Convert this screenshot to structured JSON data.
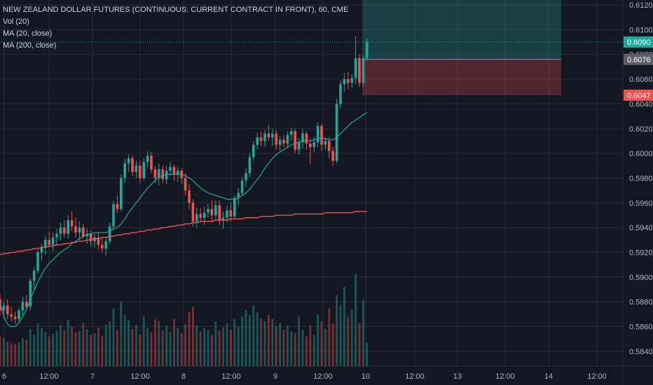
{
  "legend": {
    "title": "NEW ZEALAND DOLLAR FUTURES (CONTINUOUS: CURRENT CONTRACT IN FRONT), 60, CME",
    "vol": "Vol (20)",
    "ma20": "MA (20, close)",
    "ma200": "MA (200, close)"
  },
  "colors": {
    "background": "#131722",
    "up": "#26a69a",
    "down": "#ef5350",
    "ma20": "#26a69a",
    "ma200": "#ef5350",
    "grid": "#2a2e39"
  },
  "chart_data": {
    "type": "candlestick",
    "symbol": "NEW ZEALAND DOLLAR FUTURES (CONTINUOUS: CURRENT CONTRACT IN FRONT)",
    "interval": "60",
    "exchange": "CME",
    "ylim": [
      0.5828,
      0.6124
    ],
    "y_ticks": [
      "0.6120",
      "0.6100",
      "0.6080",
      "0.6060",
      "0.6040",
      "0.6020",
      "0.6000",
      "0.5980",
      "0.5960",
      "0.5940",
      "0.5920",
      "0.5900",
      "0.5880",
      "0.5860",
      "0.5840"
    ],
    "x_ticks": [
      "6",
      "12:00",
      "7",
      "12:00",
      "8",
      "12:00",
      "9",
      "12:00",
      "10",
      "12:00",
      "13",
      "12:00",
      "14",
      "12:00"
    ],
    "price_badges": [
      {
        "label": "0.6090",
        "value": 0.609,
        "color": "#26a69a"
      },
      {
        "label": "0.6076",
        "value": 0.6076,
        "color": "#5d606b"
      },
      {
        "label": "0.6047",
        "value": 0.6047,
        "color": "#ef5350"
      }
    ],
    "candles": [
      {
        "o": 0.5882,
        "h": 0.5886,
        "l": 0.5869,
        "c": 0.5873
      },
      {
        "o": 0.5873,
        "h": 0.588,
        "l": 0.5866,
        "c": 0.5877
      },
      {
        "o": 0.5877,
        "h": 0.5882,
        "l": 0.5866,
        "c": 0.587
      },
      {
        "o": 0.587,
        "h": 0.5876,
        "l": 0.5864,
        "c": 0.5868
      },
      {
        "o": 0.5868,
        "h": 0.5872,
        "l": 0.5862,
        "c": 0.5866
      },
      {
        "o": 0.5866,
        "h": 0.5875,
        "l": 0.5864,
        "c": 0.5873
      },
      {
        "o": 0.5873,
        "h": 0.5884,
        "l": 0.5869,
        "c": 0.588
      },
      {
        "o": 0.588,
        "h": 0.5886,
        "l": 0.5873,
        "c": 0.5876
      },
      {
        "o": 0.5876,
        "h": 0.5899,
        "l": 0.5873,
        "c": 0.5897
      },
      {
        "o": 0.5897,
        "h": 0.5908,
        "l": 0.589,
        "c": 0.5905
      },
      {
        "o": 0.5905,
        "h": 0.5922,
        "l": 0.5903,
        "c": 0.592
      },
      {
        "o": 0.592,
        "h": 0.5927,
        "l": 0.5913,
        "c": 0.5924
      },
      {
        "o": 0.5924,
        "h": 0.5933,
        "l": 0.5918,
        "c": 0.593
      },
      {
        "o": 0.593,
        "h": 0.5937,
        "l": 0.5924,
        "c": 0.5926
      },
      {
        "o": 0.5926,
        "h": 0.5936,
        "l": 0.5921,
        "c": 0.5932
      },
      {
        "o": 0.5932,
        "h": 0.5939,
        "l": 0.5926,
        "c": 0.5935
      },
      {
        "o": 0.5935,
        "h": 0.5944,
        "l": 0.593,
        "c": 0.594
      },
      {
        "o": 0.594,
        "h": 0.5946,
        "l": 0.5932,
        "c": 0.5935
      },
      {
        "o": 0.5935,
        "h": 0.595,
        "l": 0.5931,
        "c": 0.5946
      },
      {
        "o": 0.5946,
        "h": 0.5953,
        "l": 0.5937,
        "c": 0.5941
      },
      {
        "o": 0.5941,
        "h": 0.5948,
        "l": 0.5932,
        "c": 0.5936
      },
      {
        "o": 0.5936,
        "h": 0.5945,
        "l": 0.593,
        "c": 0.594
      },
      {
        "o": 0.594,
        "h": 0.5943,
        "l": 0.5931,
        "c": 0.5933
      },
      {
        "o": 0.5933,
        "h": 0.5939,
        "l": 0.5927,
        "c": 0.5935
      },
      {
        "o": 0.5935,
        "h": 0.5938,
        "l": 0.5925,
        "c": 0.5929
      },
      {
        "o": 0.5929,
        "h": 0.5935,
        "l": 0.5924,
        "c": 0.5932
      },
      {
        "o": 0.5932,
        "h": 0.5936,
        "l": 0.5922,
        "c": 0.5926
      },
      {
        "o": 0.5926,
        "h": 0.5932,
        "l": 0.592,
        "c": 0.5923
      },
      {
        "o": 0.5923,
        "h": 0.5933,
        "l": 0.5917,
        "c": 0.5929
      },
      {
        "o": 0.5929,
        "h": 0.5944,
        "l": 0.5927,
        "c": 0.5941
      },
      {
        "o": 0.5941,
        "h": 0.5962,
        "l": 0.5938,
        "c": 0.5959
      },
      {
        "o": 0.5959,
        "h": 0.5966,
        "l": 0.5952,
        "c": 0.5955
      },
      {
        "o": 0.5955,
        "h": 0.5983,
        "l": 0.5953,
        "c": 0.598
      },
      {
        "o": 0.598,
        "h": 0.5996,
        "l": 0.5976,
        "c": 0.5992
      },
      {
        "o": 0.5992,
        "h": 0.5999,
        "l": 0.5985,
        "c": 0.5996
      },
      {
        "o": 0.5996,
        "h": 0.5998,
        "l": 0.5982,
        "c": 0.5985
      },
      {
        "o": 0.5985,
        "h": 0.5994,
        "l": 0.598,
        "c": 0.599
      },
      {
        "o": 0.599,
        "h": 0.5994,
        "l": 0.5976,
        "c": 0.598
      },
      {
        "o": 0.598,
        "h": 0.5996,
        "l": 0.5978,
        "c": 0.5993
      },
      {
        "o": 0.5993,
        "h": 0.6002,
        "l": 0.5989,
        "c": 0.5998
      },
      {
        "o": 0.5998,
        "h": 0.6001,
        "l": 0.5984,
        "c": 0.5987
      },
      {
        "o": 0.5987,
        "h": 0.599,
        "l": 0.5976,
        "c": 0.598
      },
      {
        "o": 0.598,
        "h": 0.5992,
        "l": 0.5974,
        "c": 0.5987
      },
      {
        "o": 0.5987,
        "h": 0.599,
        "l": 0.5976,
        "c": 0.5979
      },
      {
        "o": 0.5979,
        "h": 0.599,
        "l": 0.5975,
        "c": 0.5986
      },
      {
        "o": 0.5986,
        "h": 0.5993,
        "l": 0.5982,
        "c": 0.5989
      },
      {
        "o": 0.5989,
        "h": 0.5991,
        "l": 0.5978,
        "c": 0.5983
      },
      {
        "o": 0.5983,
        "h": 0.5989,
        "l": 0.5977,
        "c": 0.5986
      },
      {
        "o": 0.5986,
        "h": 0.5988,
        "l": 0.5975,
        "c": 0.598
      },
      {
        "o": 0.598,
        "h": 0.5984,
        "l": 0.5966,
        "c": 0.597
      },
      {
        "o": 0.597,
        "h": 0.5975,
        "l": 0.5955,
        "c": 0.596
      },
      {
        "o": 0.596,
        "h": 0.5963,
        "l": 0.5941,
        "c": 0.5945
      },
      {
        "o": 0.5945,
        "h": 0.5956,
        "l": 0.594,
        "c": 0.5951
      },
      {
        "o": 0.5951,
        "h": 0.5956,
        "l": 0.5944,
        "c": 0.5948
      },
      {
        "o": 0.5948,
        "h": 0.5957,
        "l": 0.5942,
        "c": 0.5952
      },
      {
        "o": 0.5952,
        "h": 0.5959,
        "l": 0.5948,
        "c": 0.5955
      },
      {
        "o": 0.5955,
        "h": 0.5962,
        "l": 0.5945,
        "c": 0.595
      },
      {
        "o": 0.595,
        "h": 0.5962,
        "l": 0.5946,
        "c": 0.5958
      },
      {
        "o": 0.5958,
        "h": 0.5962,
        "l": 0.5942,
        "c": 0.5946
      },
      {
        "o": 0.5946,
        "h": 0.5953,
        "l": 0.5939,
        "c": 0.5948
      },
      {
        "o": 0.5948,
        "h": 0.5958,
        "l": 0.5944,
        "c": 0.5954
      },
      {
        "o": 0.5954,
        "h": 0.596,
        "l": 0.5945,
        "c": 0.5949
      },
      {
        "o": 0.5949,
        "h": 0.5966,
        "l": 0.5947,
        "c": 0.5964
      },
      {
        "o": 0.5964,
        "h": 0.5972,
        "l": 0.5958,
        "c": 0.5968
      },
      {
        "o": 0.5968,
        "h": 0.5981,
        "l": 0.5966,
        "c": 0.5978
      },
      {
        "o": 0.5978,
        "h": 0.5988,
        "l": 0.5973,
        "c": 0.5984
      },
      {
        "o": 0.5984,
        "h": 0.6,
        "l": 0.5981,
        "c": 0.5997
      },
      {
        "o": 0.5997,
        "h": 0.601,
        "l": 0.5994,
        "c": 0.6007
      },
      {
        "o": 0.6007,
        "h": 0.6017,
        "l": 0.6003,
        "c": 0.6013
      },
      {
        "o": 0.6013,
        "h": 0.6018,
        "l": 0.6006,
        "c": 0.601
      },
      {
        "o": 0.601,
        "h": 0.6019,
        "l": 0.6005,
        "c": 0.6016
      },
      {
        "o": 0.6016,
        "h": 0.6023,
        "l": 0.601,
        "c": 0.6013
      },
      {
        "o": 0.6013,
        "h": 0.602,
        "l": 0.6006,
        "c": 0.6016
      },
      {
        "o": 0.6016,
        "h": 0.6019,
        "l": 0.6003,
        "c": 0.6007
      },
      {
        "o": 0.6007,
        "h": 0.6014,
        "l": 0.6002,
        "c": 0.6011
      },
      {
        "o": 0.6011,
        "h": 0.6015,
        "l": 0.6005,
        "c": 0.6008
      },
      {
        "o": 0.6008,
        "h": 0.6018,
        "l": 0.6004,
        "c": 0.6015
      },
      {
        "o": 0.6015,
        "h": 0.6021,
        "l": 0.601,
        "c": 0.6018
      },
      {
        "o": 0.6018,
        "h": 0.602,
        "l": 0.6,
        "c": 0.6003
      },
      {
        "o": 0.6003,
        "h": 0.6012,
        "l": 0.5999,
        "c": 0.6009
      },
      {
        "o": 0.6009,
        "h": 0.602,
        "l": 0.6004,
        "c": 0.6016
      },
      {
        "o": 0.6016,
        "h": 0.6018,
        "l": 0.6003,
        "c": 0.6008
      },
      {
        "o": 0.6008,
        "h": 0.6012,
        "l": 0.5991,
        "c": 0.6005
      },
      {
        "o": 0.6005,
        "h": 0.6013,
        "l": 0.6001,
        "c": 0.6009
      },
      {
        "o": 0.6009,
        "h": 0.6025,
        "l": 0.6005,
        "c": 0.6022
      },
      {
        "o": 0.6022,
        "h": 0.6024,
        "l": 0.6002,
        "c": 0.6007
      },
      {
        "o": 0.6007,
        "h": 0.6013,
        "l": 0.6003,
        "c": 0.601
      },
      {
        "o": 0.601,
        "h": 0.6013,
        "l": 0.5996,
        "c": 0.6002
      },
      {
        "o": 0.6002,
        "h": 0.6005,
        "l": 0.599,
        "c": 0.5994
      },
      {
        "o": 0.5994,
        "h": 0.6044,
        "l": 0.5992,
        "c": 0.604
      },
      {
        "o": 0.604,
        "h": 0.6059,
        "l": 0.6036,
        "c": 0.6056
      },
      {
        "o": 0.6056,
        "h": 0.6065,
        "l": 0.605,
        "c": 0.606
      },
      {
        "o": 0.606,
        "h": 0.6066,
        "l": 0.6052,
        "c": 0.6057
      },
      {
        "o": 0.6057,
        "h": 0.6064,
        "l": 0.6053,
        "c": 0.6061
      },
      {
        "o": 0.6061,
        "h": 0.6095,
        "l": 0.6056,
        "c": 0.6077
      },
      {
        "o": 0.6077,
        "h": 0.608,
        "l": 0.6054,
        "c": 0.6057
      },
      {
        "o": 0.6057,
        "h": 0.6079,
        "l": 0.6054,
        "c": 0.6077
      },
      {
        "o": 0.6077,
        "h": 0.6093,
        "l": 0.6075,
        "c": 0.609
      }
    ],
    "volume": [
      36,
      34,
      30,
      28,
      27,
      29,
      34,
      32,
      45,
      38,
      52,
      46,
      41,
      36,
      39,
      43,
      50,
      44,
      56,
      48,
      41,
      43,
      52,
      45,
      38,
      40,
      47,
      37,
      50,
      54,
      70,
      44,
      78,
      62,
      56,
      45,
      50,
      38,
      60,
      46,
      41,
      57,
      55,
      43,
      49,
      41,
      57,
      46,
      40,
      51,
      66,
      72,
      49,
      42,
      46,
      44,
      38,
      54,
      43,
      47,
      52,
      44,
      57,
      48,
      60,
      68,
      62,
      74,
      65,
      58,
      54,
      62,
      57,
      48,
      52,
      44,
      49,
      42,
      40,
      60,
      44,
      36,
      49,
      38,
      62,
      54,
      45,
      70,
      52,
      86,
      74,
      96,
      60,
      68,
      112,
      52,
      80,
      28
    ],
    "ma20": [
      0.588,
      0.5868,
      0.5862,
      0.586,
      0.586,
      0.5863,
      0.5868,
      0.5874,
      0.5882,
      0.5889,
      0.5896,
      0.5902,
      0.5907,
      0.5911,
      0.5914,
      0.5917,
      0.592,
      0.5922,
      0.5924,
      0.5927,
      0.5929,
      0.5931,
      0.5933,
      0.5934,
      0.5935,
      0.5936,
      0.5936,
      0.5936,
      0.5936,
      0.5937,
      0.5939,
      0.594,
      0.5943,
      0.5947,
      0.5952,
      0.5956,
      0.596,
      0.5964,
      0.5968,
      0.5972,
      0.5975,
      0.5978,
      0.5981,
      0.5982,
      0.5983,
      0.5983,
      0.5983,
      0.5983,
      0.5983,
      0.5982,
      0.598,
      0.5978,
      0.5975,
      0.5972,
      0.597,
      0.5968,
      0.5967,
      0.5966,
      0.5965,
      0.5964,
      0.5963,
      0.5963,
      0.5963,
      0.5964,
      0.5966,
      0.5968,
      0.5971,
      0.5975,
      0.5979,
      0.5983,
      0.5988,
      0.5992,
      0.5996,
      0.5999,
      0.6001,
      0.6003,
      0.6005,
      0.6007,
      0.6008,
      0.6009,
      0.601,
      0.601,
      0.601,
      0.6011,
      0.6012,
      0.6012,
      0.6012,
      0.6011,
      0.6011,
      0.6013,
      0.6016,
      0.6019,
      0.6022,
      0.6025,
      0.6027,
      0.6029,
      0.6031,
      0.6033
    ],
    "ma200": [
      0.5918,
      0.5919,
      0.5919,
      0.592,
      0.592,
      0.5921,
      0.5921,
      0.5922,
      0.5922,
      0.5923,
      0.5923,
      0.5924,
      0.5924,
      0.5925,
      0.5925,
      0.5926,
      0.5926,
      0.5927,
      0.5927,
      0.5928,
      0.5928,
      0.5929,
      0.5929,
      0.593,
      0.593,
      0.5931,
      0.5931,
      0.5932,
      0.5932,
      0.5933,
      0.5933,
      0.5934,
      0.5934,
      0.5935,
      0.5935,
      0.5936,
      0.5936,
      0.5937,
      0.5937,
      0.5938,
      0.5938,
      0.5939,
      0.5939,
      0.594,
      0.594,
      0.5941,
      0.5941,
      0.5942,
      0.5942,
      0.5943,
      0.5943,
      0.5944,
      0.5944,
      0.5945,
      0.5945,
      0.5945,
      0.5945,
      0.5946,
      0.5946,
      0.5946,
      0.5946,
      0.5947,
      0.5947,
      0.5947,
      0.5947,
      0.5948,
      0.5948,
      0.5948,
      0.5948,
      0.5949,
      0.5949,
      0.5949,
      0.5949,
      0.595,
      0.595,
      0.595,
      0.595,
      0.595,
      0.5951,
      0.5951,
      0.5951,
      0.5951,
      0.5951,
      0.5951,
      0.5951,
      0.5951,
      0.5952,
      0.5952,
      0.5952,
      0.5952,
      0.5952,
      0.5952,
      0.5952,
      0.5952,
      0.5953,
      0.5953,
      0.5953,
      0.5953
    ],
    "position_tool": {
      "entry": 0.6076,
      "target": 0.6124,
      "stop": 0.6047,
      "profit_color": "#26a69a",
      "loss_color": "#ef5350"
    }
  }
}
